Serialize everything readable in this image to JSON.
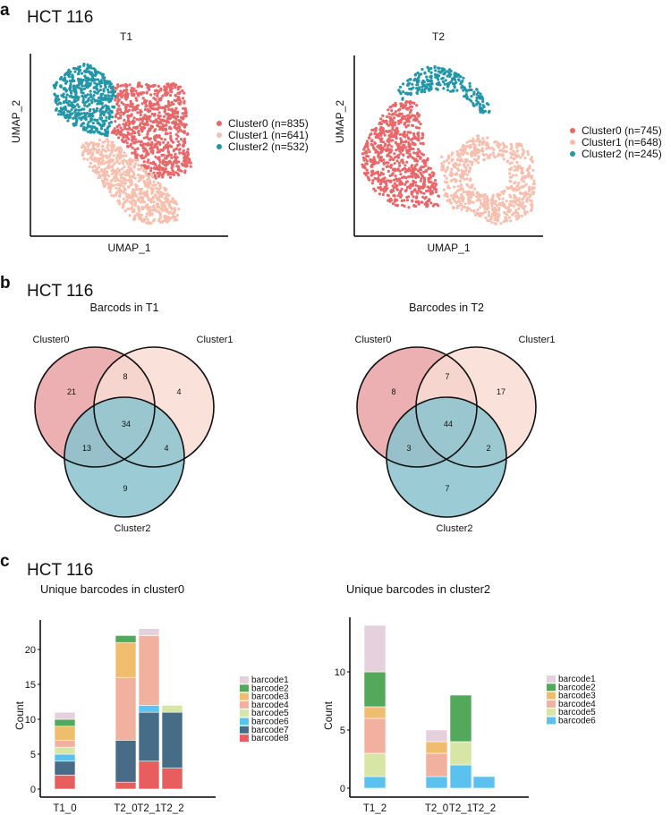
{
  "panels": {
    "a": {
      "letter": "a",
      "heading": "HCT 116"
    },
    "b": {
      "letter": "b",
      "heading": "HCT 116"
    },
    "c": {
      "letter": "c",
      "heading": "HCT 116"
    }
  },
  "colors": {
    "cluster0": "#E8686A",
    "cluster1": "#F7BFAE",
    "cluster2": "#2396A8",
    "venn0": "#E9A2A5",
    "venn1": "#F9DCD4",
    "venn2": "#8AC3CF"
  },
  "chart_data": [
    {
      "type": "scatter",
      "title": "T1",
      "xlabel": "UMAP_1",
      "ylabel": "UMAP_2",
      "legend_position": "right",
      "series": [
        {
          "name": "Cluster0 (n=835)",
          "n": 835
        },
        {
          "name": "Cluster1 (n=641)",
          "n": 641
        },
        {
          "name": "Cluster2 (n=532)",
          "n": 532
        }
      ]
    },
    {
      "type": "scatter",
      "title": "T2",
      "xlabel": "UMAP_1",
      "ylabel": "UMAP_2",
      "legend_position": "right",
      "series": [
        {
          "name": "Cluster0 (n=745)",
          "n": 745
        },
        {
          "name": "Cluster1 (n=648)",
          "n": 648
        },
        {
          "name": "Cluster2 (n=245)",
          "n": 245
        }
      ]
    },
    {
      "type": "venn",
      "title": "Barcods in T1",
      "sets": [
        "Cluster0",
        "Cluster1",
        "Cluster2"
      ],
      "regions": {
        "only0": "21",
        "only1": "4",
        "only2": "9",
        "c01": "8",
        "c02": "13",
        "c12": "4",
        "c012": "34"
      }
    },
    {
      "type": "venn",
      "title": "Barcodes in T2",
      "sets": [
        "Cluster0",
        "Cluster1",
        "Cluster2"
      ],
      "regions": {
        "only0": "8",
        "only1": "17",
        "only2": "7",
        "c01": "7",
        "c02": "3",
        "c12": "2",
        "c012": "44"
      }
    },
    {
      "type": "bar",
      "stacked": true,
      "title": "Unique barcodes in cluster0",
      "ylabel": "Count",
      "xlabel": "",
      "ylim": [
        0,
        23
      ],
      "yticks": [
        "0",
        "5",
        "10",
        "15",
        "20"
      ],
      "categories": [
        "T1_0",
        "T2_0",
        "T2_1",
        "T2_2"
      ],
      "legend_position": "right",
      "series": [
        {
          "name": "barcode1",
          "color": "#E5D0DE",
          "values": [
            1,
            0,
            1,
            0
          ]
        },
        {
          "name": "barcode2",
          "color": "#52A95C",
          "values": [
            1,
            1,
            0,
            0
          ]
        },
        {
          "name": "barcode3",
          "color": "#F0BC6E",
          "values": [
            2,
            5,
            0,
            0
          ]
        },
        {
          "name": "barcode4",
          "color": "#F2B19F",
          "values": [
            1,
            9,
            10,
            0
          ]
        },
        {
          "name": "barcode5",
          "color": "#D7E6A5",
          "values": [
            1,
            0,
            0,
            1
          ]
        },
        {
          "name": "barcode6",
          "color": "#5BC2EF",
          "values": [
            1,
            0,
            1,
            0
          ]
        },
        {
          "name": "barcode7",
          "color": "#476C88",
          "values": [
            2,
            6,
            7,
            8
          ]
        },
        {
          "name": "barcode8",
          "color": "#E85D5E",
          "values": [
            2,
            1,
            4,
            3
          ]
        }
      ]
    },
    {
      "type": "bar",
      "stacked": true,
      "title": "Unique barcodes in cluster2",
      "ylabel": "Count",
      "xlabel": "",
      "ylim": [
        0,
        14
      ],
      "yticks": [
        "0",
        "5",
        "10"
      ],
      "categories": [
        "T1_2",
        "T2_0",
        "T2_1",
        "T2_2"
      ],
      "legend_position": "right",
      "series": [
        {
          "name": "barcode1",
          "color": "#E5D0DE",
          "values": [
            4,
            1,
            0,
            0
          ]
        },
        {
          "name": "barcode2",
          "color": "#52A95C",
          "values": [
            3,
            0,
            4,
            0
          ]
        },
        {
          "name": "barcode3",
          "color": "#F0BC6E",
          "values": [
            1,
            1,
            0,
            0
          ]
        },
        {
          "name": "barcode4",
          "color": "#F2B19F",
          "values": [
            3,
            2,
            0,
            0
          ]
        },
        {
          "name": "barcode5",
          "color": "#D7E6A5",
          "values": [
            2,
            0,
            2,
            0
          ]
        },
        {
          "name": "barcode6",
          "color": "#5BC2EF",
          "values": [
            1,
            1,
            2,
            1
          ]
        }
      ]
    }
  ]
}
